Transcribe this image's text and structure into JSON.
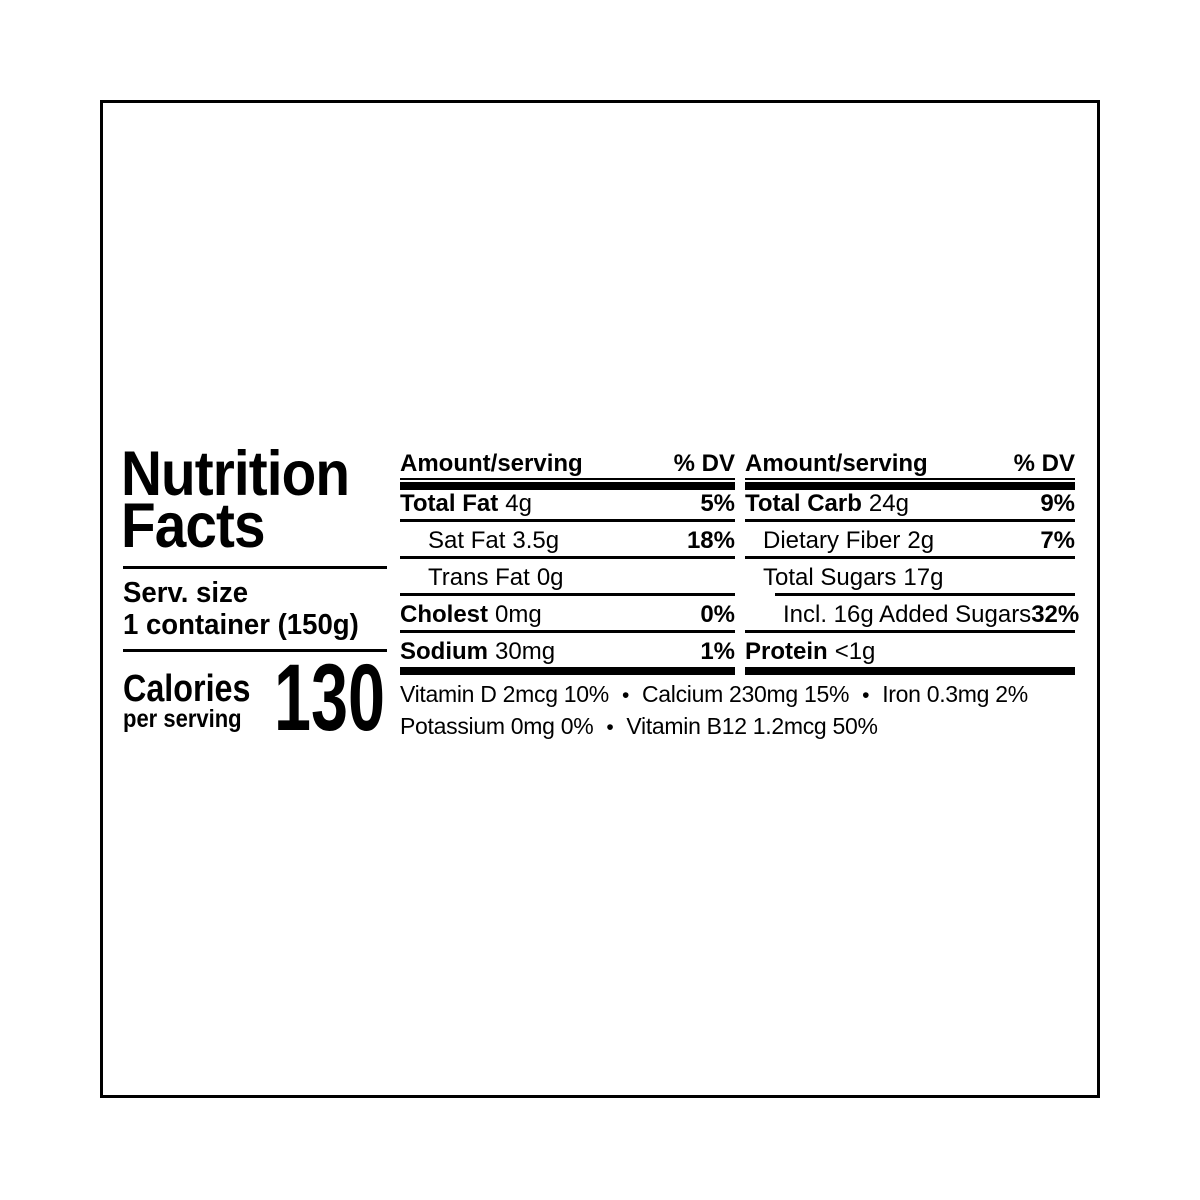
{
  "label": {
    "colors": {
      "text": "#000000",
      "background": "#ffffff"
    },
    "title_line1": "Nutrition",
    "title_line2": "Facts",
    "serving": {
      "label": "Serv. size",
      "value": "1 container (150g)"
    },
    "calories": {
      "label": "Calories",
      "sublabel": "per serving",
      "value": "130"
    },
    "columns": [
      {
        "header": {
          "amount": "Amount/serving",
          "dv": "% DV"
        },
        "rows": [
          {
            "label": "Total Fat",
            "value": "4g",
            "dv": "5%"
          },
          {
            "label": "Sat Fat",
            "value": "3.5g",
            "dv": "18%"
          },
          {
            "label": "Trans Fat",
            "value": "0g",
            "dv": ""
          },
          {
            "label": "Cholest",
            "value": "0mg",
            "dv": "0%"
          },
          {
            "label": "Sodium",
            "value": "30mg",
            "dv": "1%"
          }
        ]
      },
      {
        "header": {
          "amount": "Amount/serving",
          "dv": "% DV"
        },
        "rows": [
          {
            "label": "Total Carb",
            "value": "24g",
            "dv": "9%"
          },
          {
            "label": "Dietary Fiber",
            "value": "2g",
            "dv": "7%"
          },
          {
            "label": "Total Sugars",
            "value": "17g",
            "dv": ""
          },
          {
            "label": "Incl. 16g Added Sugars",
            "value": "",
            "dv": "32%"
          },
          {
            "label": "Protein",
            "value": "<1g",
            "dv": ""
          }
        ]
      }
    ],
    "micronutrients": {
      "separator": "•",
      "line1": [
        "Vitamin D 2mcg 10%",
        "Calcium 230mg 15%",
        "Iron 0.3mg 2%"
      ],
      "line2": [
        "Potassium 0mg 0%",
        "Vitamin B12 1.2mcg 50%"
      ]
    }
  }
}
